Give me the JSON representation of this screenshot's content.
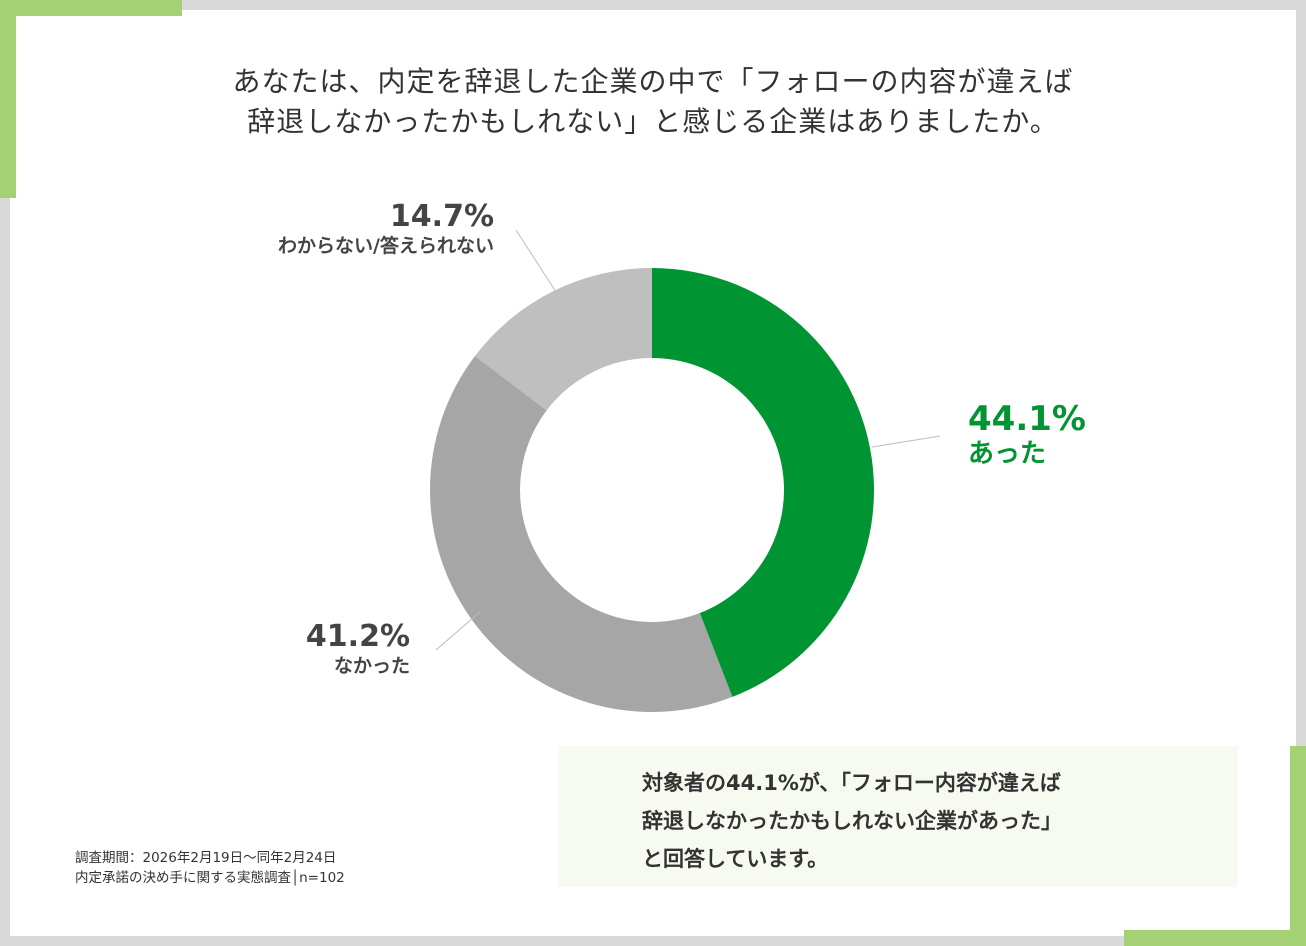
{
  "title_lines": [
    "あなたは、内定を辞退した企業の中で「フォローの内容が違えば",
    "辞退しなかったかもしれない」と感じる企業はありましたか。"
  ],
  "chart_data": {
    "type": "pie",
    "donut": true,
    "title": "あなたは、内定を辞退した企業の中で「フォローの内容が違えば辞退しなかったかもしれない」と感じる企業はありましたか。",
    "categories": [
      "あった",
      "なかった",
      "わからない/答えられない"
    ],
    "values": [
      44.1,
      41.2,
      14.7
    ],
    "labels": [
      "44.1%",
      "41.2%",
      "14.7%"
    ],
    "colors": [
      "#009432",
      "#a6a6a6",
      "#bfbfbf"
    ]
  },
  "summary_lines": [
    "対象者の44.1%が、「フォロー内容が違えば",
    "辞退しなかったかもしれない企業があった」",
    "と回答しています。"
  ],
  "footer": {
    "period": "調査期間：2026年2月19日～同年2月24日",
    "survey": "内定承諾の決め手に関する実態調査│n=102"
  },
  "colors": {
    "accent": "#a3d174",
    "background": "#d9d9d9",
    "summary_bg": "#f6faf0"
  }
}
